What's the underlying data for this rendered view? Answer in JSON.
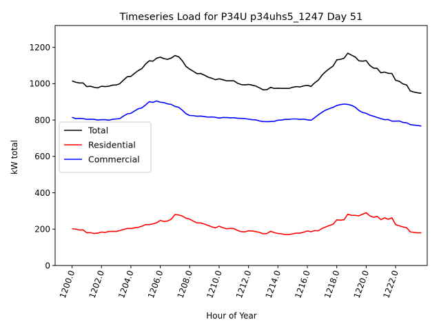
{
  "chart_data": {
    "type": "line",
    "title": "Timeseries Load for P34U p34uhs5_1247  Day 51",
    "xlabel": "Hour of Year",
    "ylabel": "kW total",
    "xlim": [
      1198.85,
      1224.15
    ],
    "ylim": [
      0,
      1320
    ],
    "x_ticks": [
      1200,
      1202,
      1204,
      1206,
      1208,
      1210,
      1212,
      1214,
      1216,
      1218,
      1220,
      1222
    ],
    "x_tick_labels": [
      "1200.0",
      "1202.0",
      "1204.0",
      "1206.0",
      "1208.0",
      "1210.0",
      "1212.0",
      "1214.0",
      "1216.0",
      "1218.0",
      "1220.0",
      "1222.0"
    ],
    "y_ticks": [
      0,
      200,
      400,
      600,
      800,
      1000,
      1200
    ],
    "y_tick_labels": [
      "0",
      "200",
      "400",
      "600",
      "800",
      "1000",
      "1200"
    ],
    "grid": false,
    "legend_position": "center-left",
    "x": [
      1200.0,
      1200.25,
      1200.5,
      1200.75,
      1201.0,
      1201.25,
      1201.5,
      1201.75,
      1202.0,
      1202.25,
      1202.5,
      1202.75,
      1203.0,
      1203.25,
      1203.5,
      1203.75,
      1204.0,
      1204.25,
      1204.5,
      1204.75,
      1205.0,
      1205.25,
      1205.5,
      1205.75,
      1206.0,
      1206.25,
      1206.5,
      1206.75,
      1207.0,
      1207.25,
      1207.5,
      1207.75,
      1208.0,
      1208.25,
      1208.5,
      1208.75,
      1209.0,
      1209.25,
      1209.5,
      1209.75,
      1210.0,
      1210.25,
      1210.5,
      1210.75,
      1211.0,
      1211.25,
      1211.5,
      1211.75,
      1212.0,
      1212.25,
      1212.5,
      1212.75,
      1213.0,
      1213.25,
      1213.5,
      1213.75,
      1214.0,
      1214.25,
      1214.5,
      1214.75,
      1215.0,
      1215.25,
      1215.5,
      1215.75,
      1216.0,
      1216.25,
      1216.5,
      1216.75,
      1217.0,
      1217.25,
      1217.5,
      1217.75,
      1218.0,
      1218.25,
      1218.5,
      1218.75,
      1219.0,
      1219.25,
      1219.5,
      1219.75,
      1220.0,
      1220.25,
      1220.5,
      1220.75,
      1221.0,
      1221.25,
      1221.5,
      1221.75,
      1222.0,
      1222.25,
      1222.5,
      1222.75,
      1223.0,
      1223.25,
      1223.5,
      1223.75
    ],
    "series": [
      {
        "name": "Total",
        "color": "#000000",
        "values": [
          1015,
          1008,
          1004,
          1004,
          984,
          986,
          980,
          977,
          986,
          984,
          986,
          992,
          993,
          1000,
          1020,
          1038,
          1040,
          1057,
          1072,
          1083,
          1108,
          1126,
          1124,
          1140,
          1146,
          1138,
          1134,
          1141,
          1155,
          1148,
          1126,
          1095,
          1080,
          1068,
          1055,
          1056,
          1047,
          1036,
          1030,
          1022,
          1027,
          1022,
          1016,
          1016,
          1016,
          1003,
          995,
          993,
          996,
          992,
          987,
          977,
          966,
          967,
          980,
          974,
          975,
          974,
          974,
          974,
          980,
          984,
          982,
          988,
          991,
          985,
          1005,
          1020,
          1047,
          1067,
          1083,
          1097,
          1131,
          1134,
          1140,
          1168,
          1157,
          1147,
          1126,
          1124,
          1127,
          1100,
          1086,
          1084,
          1060,
          1064,
          1057,
          1056,
          1019,
          1013,
          999,
          993,
          960,
          954,
          950,
          947
        ]
      },
      {
        "name": "Residential",
        "color": "#ff0000",
        "values": [
          202,
          200,
          195,
          196,
          180,
          181,
          176,
          178,
          184,
          182,
          187,
          188,
          187,
          192,
          198,
          204,
          203,
          207,
          210,
          216,
          225,
          225,
          229,
          235,
          248,
          242,
          245,
          255,
          280,
          278,
          272,
          260,
          255,
          244,
          234,
          234,
          228,
          220,
          213,
          207,
          216,
          208,
          202,
          204,
          203,
          193,
          186,
          185,
          191,
          190,
          186,
          182,
          174,
          176,
          188,
          181,
          176,
          174,
          170,
          170,
          174,
          178,
          178,
          183,
          190,
          186,
          192,
          191,
          204,
          212,
          220,
          227,
          251,
          249,
          252,
          282,
          276,
          276,
          273,
          282,
          290,
          273,
          265,
          270,
          252,
          262,
          254,
          262,
          225,
          218,
          212,
          208,
          185,
          182,
          180,
          180
        ]
      },
      {
        "name": "Commercial",
        "color": "#0000ff",
        "values": [
          815,
          808,
          809,
          808,
          804,
          805,
          804,
          800,
          802,
          802,
          799,
          804,
          806,
          808,
          822,
          834,
          837,
          850,
          862,
          867,
          883,
          901,
          897,
          905,
          898,
          896,
          889,
          886,
          875,
          870,
          854,
          835,
          825,
          824,
          821,
          822,
          819,
          816,
          817,
          815,
          811,
          814,
          814,
          812,
          813,
          810,
          809,
          808,
          805,
          802,
          801,
          795,
          792,
          791,
          792,
          793,
          799,
          800,
          804,
          804,
          806,
          806,
          804,
          805,
          801,
          799,
          813,
          829,
          843,
          855,
          863,
          870,
          880,
          885,
          888,
          886,
          881,
          871,
          853,
          842,
          837,
          827,
          821,
          814,
          808,
          802,
          803,
          794,
          794,
          795,
          787,
          785,
          775,
          772,
          770,
          767
        ]
      }
    ]
  }
}
